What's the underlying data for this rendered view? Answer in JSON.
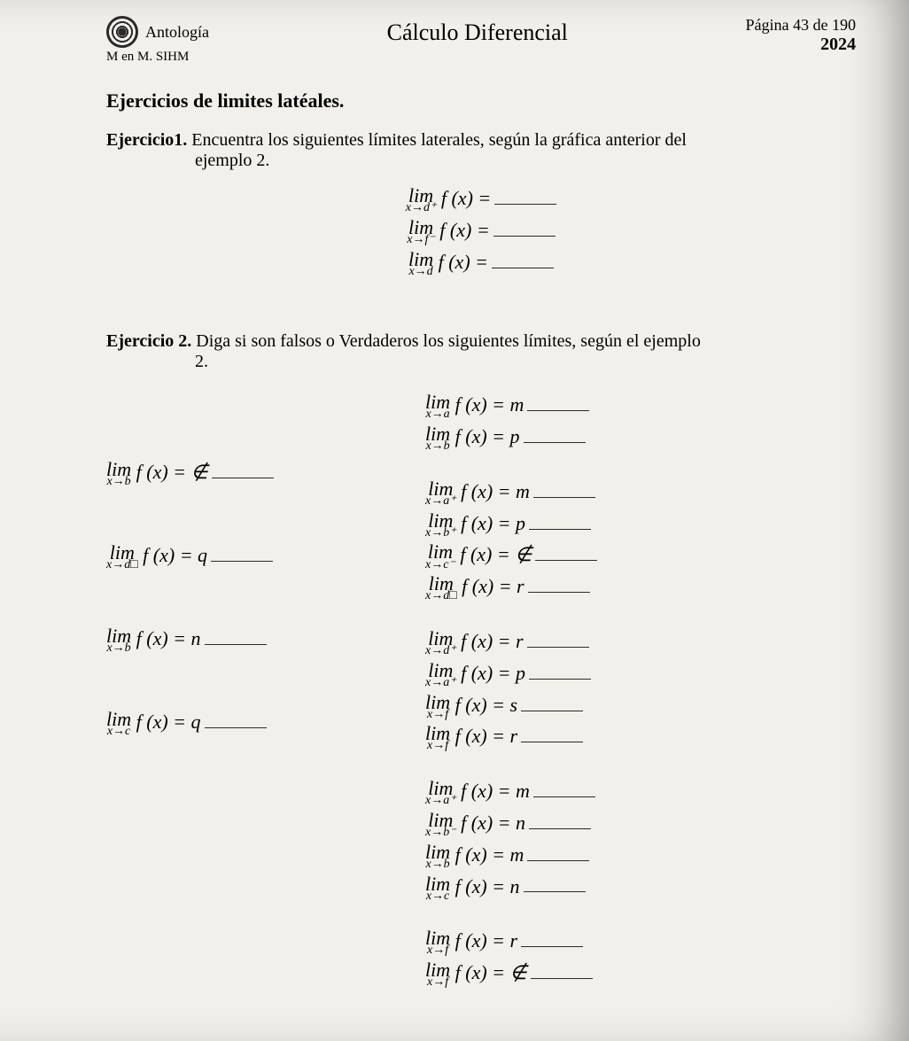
{
  "header": {
    "brand": "Antología",
    "subheader": "M en M. SIHM",
    "script_title": "Cálculo Diferencial",
    "page_label": "Página 43 de 190",
    "year": "2024"
  },
  "section_title": "Ejercicios de limites latéales.",
  "ex1": {
    "label": "Ejercicio1.",
    "text": "Encuentra los siguientes límites laterales, según la gráfica anterior del",
    "indent_text": "ejemplo 2.",
    "lines": [
      {
        "sub": "x→d⁺",
        "rhs": "="
      },
      {
        "sub": "x→f⁻",
        "rhs": "="
      },
      {
        "sub": "x→d",
        "rhs": "="
      }
    ]
  },
  "ex2": {
    "label": "Ejercicio 2.",
    "text": "Diga si son falsos o Verdaderos los siguientes límites, según el ejemplo",
    "indent_text": "2.",
    "left": [
      {
        "sub": "x→b",
        "rhs": "= ∉"
      },
      {
        "sub": "x→d□",
        "rhs": "= q"
      },
      {
        "sub": "x→b",
        "rhs": "= n"
      },
      {
        "sub": "x→c",
        "rhs": "= q"
      }
    ],
    "right": [
      [
        {
          "sub": "x→a",
          "rhs": "= m"
        },
        {
          "sub": "x→b",
          "rhs": "= p"
        }
      ],
      [
        {
          "sub": "x→a⁺",
          "rhs": "= m"
        },
        {
          "sub": "x→b⁺",
          "rhs": "= p"
        },
        {
          "sub": "x→c⁻",
          "rhs": "= ∉"
        },
        {
          "sub": "x→d□",
          "rhs": "= r"
        }
      ],
      [
        {
          "sub": "x→d⁺",
          "rhs": "= r"
        },
        {
          "sub": "x→a⁺",
          "rhs": "= p"
        },
        {
          "sub": "x→f",
          "rhs": "= s"
        },
        {
          "sub": "x→f",
          "rhs": "= r"
        }
      ],
      [
        {
          "sub": "x→a⁺",
          "rhs": "= m"
        },
        {
          "sub": "x→b⁻",
          "rhs": "= n"
        },
        {
          "sub": "x→b",
          "rhs": "= m"
        },
        {
          "sub": "x→c",
          "rhs": "= n"
        }
      ],
      [
        {
          "sub": "x→f",
          "rhs": "= r"
        },
        {
          "sub": "x→f",
          "rhs": "= ∉"
        }
      ]
    ]
  },
  "glyphs": {
    "lim": "lim",
    "fx": "f (x)"
  },
  "colors": {
    "page_bg": "#f2f0ea",
    "desk_bg": "#6b5544",
    "text": "#2a2a2a"
  }
}
